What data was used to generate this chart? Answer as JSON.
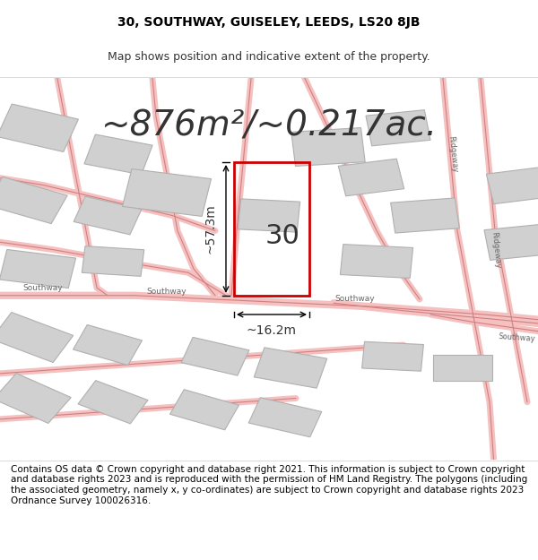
{
  "title_line1": "30, SOUTHWAY, GUISELEY, LEEDS, LS20 8JB",
  "title_line2": "Map shows position and indicative extent of the property.",
  "area_text": "~876m²/~0.217ac.",
  "property_number": "30",
  "dim_width": "~16.2m",
  "dim_height": "~57.3m",
  "footer_text": "Contains OS data © Crown copyright and database right 2021. This information is subject to Crown copyright and database rights 2023 and is reproduced with the permission of HM Land Registry. The polygons (including the associated geometry, namely x, y co-ordinates) are subject to Crown copyright and database rights 2023 Ordnance Survey 100026316.",
  "bg_color": "#ffffff",
  "road_fill": "#f5c0c0",
  "road_line": "#d08080",
  "building_fill": "#d0d0d0",
  "building_edge": "#b0b0b0",
  "property_outline_color": "#cc0000",
  "dim_line_color": "#000000",
  "road_label_color": "#666666",
  "title_fontsize": 10,
  "subtitle_fontsize": 9,
  "area_fontsize": 28,
  "number_fontsize": 22,
  "dim_fontsize": 10,
  "footer_fontsize": 7.5
}
